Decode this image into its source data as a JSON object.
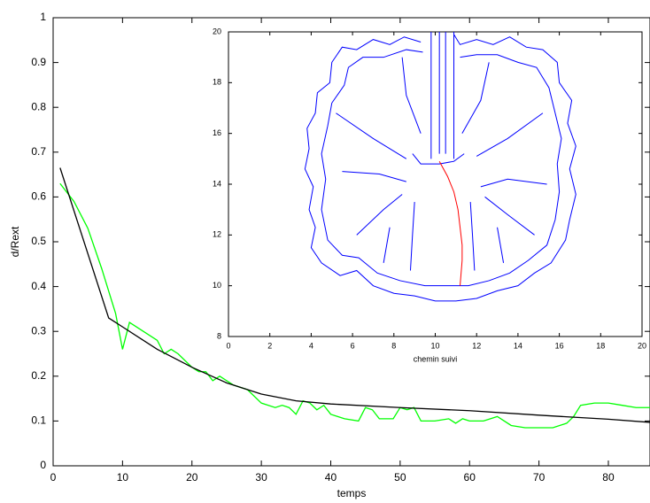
{
  "chart_data": [
    {
      "type": "line",
      "xlabel": "temps",
      "ylabel": "d/Rext",
      "xlim": [
        0,
        86
      ],
      "ylim": [
        0,
        1
      ],
      "xticks": [
        0,
        10,
        20,
        30,
        40,
        50,
        60,
        70,
        80
      ],
      "yticks": [
        0,
        0.1,
        0.2,
        0.3,
        0.4,
        0.5,
        0.6,
        0.7,
        0.8,
        0.9,
        1
      ],
      "series": [
        {
          "color": "#00ff00",
          "x": [
            1,
            3,
            5,
            7,
            9,
            10,
            11,
            13,
            15,
            16,
            17,
            18,
            20,
            21,
            22,
            23,
            24,
            26,
            28,
            30,
            32,
            33,
            34,
            35,
            36,
            37,
            38,
            39,
            40,
            41,
            42,
            44,
            45,
            46,
            47,
            48,
            49,
            50,
            51,
            52,
            53,
            55,
            57,
            58,
            59,
            60,
            62,
            63,
            64,
            66,
            68,
            70,
            72,
            74,
            75,
            76,
            78,
            80,
            82,
            84,
            86
          ],
          "values": [
            0.63,
            0.59,
            0.53,
            0.44,
            0.34,
            0.26,
            0.32,
            0.3,
            0.28,
            0.25,
            0.26,
            0.25,
            0.22,
            0.21,
            0.21,
            0.19,
            0.2,
            0.18,
            0.17,
            0.14,
            0.13,
            0.135,
            0.13,
            0.115,
            0.145,
            0.14,
            0.125,
            0.135,
            0.115,
            0.11,
            0.105,
            0.1,
            0.13,
            0.125,
            0.105,
            0.105,
            0.105,
            0.13,
            0.125,
            0.13,
            0.1,
            0.1,
            0.105,
            0.095,
            0.105,
            0.1,
            0.1,
            0.105,
            0.11,
            0.09,
            0.085,
            0.085,
            0.085,
            0.095,
            0.11,
            0.135,
            0.14,
            0.14,
            0.135,
            0.13,
            0.13
          ]
        },
        {
          "color": "#000000",
          "x": [
            1,
            8,
            10,
            15,
            20,
            25,
            30,
            35,
            40,
            50,
            60,
            70,
            80,
            86
          ],
          "values": [
            0.665,
            0.33,
            0.31,
            0.26,
            0.22,
            0.185,
            0.16,
            0.145,
            0.138,
            0.13,
            0.123,
            0.113,
            0.104,
            0.097
          ]
        }
      ]
    },
    {
      "type": "line",
      "xlabel": "chemin suivi",
      "xlim": [
        0,
        20
      ],
      "ylim": [
        8,
        20
      ],
      "xticks": [
        0,
        2,
        4,
        6,
        8,
        10,
        12,
        14,
        16,
        18,
        20
      ],
      "yticks": [
        8,
        10,
        12,
        14,
        16,
        18,
        20
      ],
      "series": [
        {
          "color": "#0000ff",
          "x": [
            9.3,
            8.5,
            7.8,
            7.0,
            6.2,
            5.5,
            5.0,
            4.9,
            4.3,
            4.2,
            3.8,
            3.9,
            3.7,
            4.1,
            3.9,
            4.2,
            4.0,
            4.5,
            5.4,
            6.2,
            7.0,
            8.0,
            9.0,
            10.0,
            11.0,
            12.0,
            13.0,
            14.0,
            14.8,
            15.6,
            16.3,
            16.5,
            16.8,
            16.5,
            16.8,
            16.4,
            16.6,
            16.0,
            15.9,
            15.2,
            14.4,
            13.6,
            12.8,
            12.0,
            11.2,
            10.9,
            null,
            9.4,
            8.6,
            7.5,
            6.5,
            5.8,
            5.6,
            5.0,
            4.8,
            4.5,
            4.7,
            4.5,
            4.8,
            5.5,
            6.3,
            7.2,
            8.3,
            9.5,
            10.5,
            11.6,
            12.6,
            13.6,
            14.5,
            15.4,
            15.8,
            16.0,
            15.9,
            16.1,
            15.8,
            15.5,
            14.9,
            14.0,
            13.0,
            12.0,
            11.2,
            null,
            9.8,
            9.8,
            null,
            10.2,
            10.2,
            null,
            10.5,
            10.5,
            null,
            10.9,
            10.9,
            null,
            8.9,
            9.3,
            10.2,
            10.9,
            11.4,
            null,
            5.2,
            7.0,
            8.6,
            null,
            5.5,
            7.3,
            8.6,
            null,
            6.2,
            7.5,
            8.4,
            null,
            8.4,
            8.6,
            9.3,
            null,
            15.2,
            13.5,
            12.0,
            null,
            15.4,
            13.5,
            12.2,
            null,
            14.8,
            13.5,
            12.4,
            null,
            12.6,
            12.2,
            11.3,
            null,
            8.8,
            8.9,
            9.0,
            null,
            11.9,
            11.8,
            11.7,
            null,
            7.5,
            7.8,
            null,
            13.3,
            13.0
          ],
          "values": [
            19.6,
            19.8,
            19.5,
            19.7,
            19.3,
            19.4,
            18.8,
            18.0,
            17.6,
            16.8,
            16.2,
            15.4,
            14.6,
            13.9,
            13.0,
            12.3,
            11.5,
            10.9,
            10.4,
            10.6,
            10.0,
            9.7,
            9.6,
            9.4,
            9.4,
            9.5,
            9.8,
            10.0,
            10.5,
            10.9,
            11.8,
            12.6,
            13.6,
            14.6,
            15.5,
            16.4,
            17.3,
            18.0,
            18.8,
            19.3,
            19.4,
            19.8,
            19.5,
            19.7,
            19.5,
            19.9,
            null,
            19.2,
            19.3,
            19.0,
            19.0,
            18.6,
            17.9,
            17.2,
            16.3,
            15.2,
            14.2,
            13.0,
            11.8,
            11.2,
            11.1,
            10.5,
            10.2,
            10.0,
            10.0,
            10.0,
            10.2,
            10.5,
            11.0,
            11.6,
            12.6,
            13.7,
            14.8,
            15.8,
            16.8,
            17.8,
            18.6,
            18.8,
            19.1,
            19.1,
            19.0,
            null,
            20,
            15.0,
            null,
            20,
            15.2,
            null,
            20,
            15.2,
            null,
            20,
            15.0,
            null,
            15.2,
            14.8,
            14.8,
            14.9,
            15.2,
            null,
            16.8,
            15.8,
            15.0,
            null,
            14.5,
            14.4,
            14.1,
            null,
            12.0,
            13.0,
            13.6,
            null,
            19.0,
            17.5,
            16.0,
            null,
            16.8,
            15.8,
            15.1,
            null,
            14.0,
            14.2,
            13.9,
            null,
            12.0,
            12.8,
            13.5,
            null,
            18.8,
            17.3,
            16.0,
            null,
            10.6,
            12.0,
            13.3,
            null,
            10.6,
            12.0,
            13.3,
            null,
            10.9,
            12.3,
            null,
            10.9,
            12.3
          ]
        },
        {
          "color": "#ff0000",
          "x": [
            10.2,
            10.6,
            10.9,
            11.1,
            11.2,
            11.3,
            11.3,
            11.2
          ],
          "values": [
            14.9,
            14.3,
            13.7,
            13.0,
            12.3,
            11.6,
            11.0,
            10.0
          ]
        }
      ]
    }
  ]
}
